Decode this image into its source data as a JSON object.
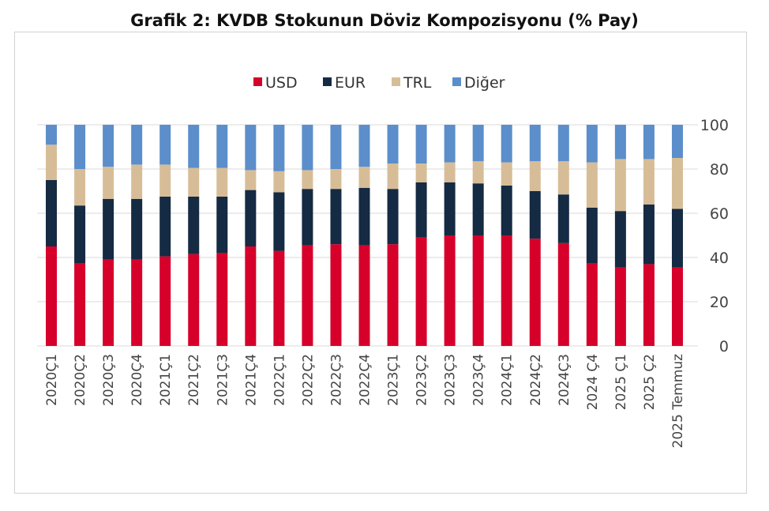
{
  "chart_data": {
    "type": "bar",
    "stacked": true,
    "title": "Grafik 2: KVDB Stokunun Döviz Kompozisyonu (% Pay)",
    "xlabel": "",
    "ylabel": "",
    "ylim": [
      0,
      100
    ],
    "yticks": [
      "0",
      "20",
      "40",
      "60",
      "80",
      "100"
    ],
    "y_axis_side": "right",
    "grid": true,
    "legend_position": "top",
    "categories": [
      "2020Ç1",
      "2020Ç2",
      "2020Ç3",
      "2020Ç4",
      "2021Ç1",
      "2021Ç2",
      "2021Ç3",
      "2021Ç4",
      "2022Ç1",
      "2022Ç2",
      "2022Ç3",
      "2022Ç4",
      "2023Ç1",
      "2023Ç2",
      "2023Ç3",
      "2023Ç4",
      "2024Ç1",
      "2024Ç2",
      "2024Ç3",
      "2024 Ç4",
      "2025 Ç1",
      "2025 Ç2",
      "2025 Temmuz"
    ],
    "series": [
      {
        "name": "USD",
        "color": "#d6002a",
        "values": [
          45,
          37.5,
          39,
          39,
          40.5,
          41.5,
          42,
          45,
          43,
          45.5,
          46,
          45.5,
          46,
          49,
          50,
          50,
          50,
          48.5,
          46.5,
          37.5,
          35.5,
          37,
          35.5
        ]
      },
      {
        "name": "EUR",
        "color": "#152a43",
        "values": [
          30,
          26,
          27.5,
          27.5,
          27,
          26,
          25.5,
          25.5,
          26.5,
          25.5,
          25,
          26,
          25,
          25,
          24,
          23.5,
          22.5,
          21.5,
          22,
          25,
          25.5,
          27,
          26.5
        ]
      },
      {
        "name": "TRL",
        "color": "#d7bd97",
        "values": [
          16,
          16.5,
          14.5,
          15.5,
          14.5,
          13,
          13,
          9,
          9.5,
          8.5,
          9,
          9.5,
          11.5,
          8.5,
          9,
          10,
          10.5,
          13.5,
          15,
          20.5,
          23.5,
          20.5,
          23
        ]
      },
      {
        "name": "Diğer",
        "color": "#5b8ecb",
        "values": [
          9,
          20,
          19,
          18,
          18,
          19.5,
          19.5,
          20.5,
          21,
          20.5,
          20,
          19,
          17.5,
          17.5,
          17,
          16.5,
          17,
          16.5,
          16.5,
          17,
          15.5,
          15.5,
          15
        ]
      }
    ]
  }
}
